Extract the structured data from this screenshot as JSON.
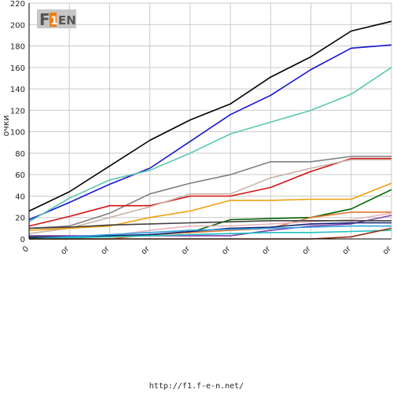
{
  "chart_data": {
    "type": "line",
    "ylabel": "очки",
    "ylim": [
      0,
      220
    ],
    "yticks": [
      0,
      20,
      40,
      60,
      80,
      100,
      120,
      140,
      160,
      180,
      200,
      220
    ],
    "x_tick_labels": [
      "0",
      "or",
      "or",
      "or",
      "or",
      "or",
      "or",
      "or",
      "or",
      "or"
    ],
    "grid": true,
    "series": [
      {
        "color": "#000000",
        "values": [
          26,
          44,
          68,
          92,
          111,
          126,
          151,
          170,
          194,
          203
        ]
      },
      {
        "color": "#1515d4",
        "values": [
          18,
          34,
          51,
          66,
          91,
          116,
          134,
          158,
          178,
          181
        ]
      },
      {
        "color": "#5ac8b0",
        "values": [
          16,
          38,
          55,
          64,
          80,
          98,
          109,
          120,
          135,
          160
        ]
      },
      {
        "color": "#7f7f7f",
        "values": [
          10,
          12,
          24,
          42,
          52,
          60,
          72,
          72,
          77,
          77
        ]
      },
      {
        "color": "#d41010",
        "values": [
          12,
          21,
          31,
          31,
          40,
          40,
          48,
          63,
          75,
          75
        ]
      },
      {
        "color": "#c8b4a8",
        "values": [
          5,
          10,
          20,
          30,
          42,
          42,
          57,
          66,
          74,
          74
        ]
      },
      {
        "color": "#f0a010",
        "values": [
          8,
          10,
          12,
          20,
          26,
          36,
          36,
          37,
          37,
          52
        ]
      },
      {
        "color": "#006400",
        "values": [
          2,
          2,
          2,
          4,
          6,
          18,
          19,
          20,
          28,
          46
        ]
      },
      {
        "color": "#e07830",
        "values": [
          0,
          0,
          0,
          4,
          6,
          8,
          10,
          20,
          25,
          25
        ]
      },
      {
        "color": "#e4b4c0",
        "values": [
          1,
          2,
          3,
          8,
          12,
          12,
          14,
          16,
          18,
          24
        ]
      },
      {
        "color": "#8040b0",
        "values": [
          3,
          3,
          3,
          3,
          3,
          3,
          8,
          12,
          14,
          22
        ]
      },
      {
        "color": "#404040",
        "values": [
          10,
          11,
          13,
          14,
          15,
          16,
          17,
          17,
          17,
          17
        ]
      },
      {
        "color": "#102070",
        "values": [
          1,
          2,
          3,
          4,
          7,
          10,
          11,
          14,
          15,
          15
        ]
      },
      {
        "color": "#30a0e0",
        "values": [
          0,
          2,
          4,
          6,
          8,
          9,
          10,
          11,
          12,
          12
        ]
      },
      {
        "color": "#20c0c0",
        "values": [
          0,
          1,
          2,
          3,
          4,
          5,
          6,
          6,
          7,
          8
        ]
      },
      {
        "color": "#903010",
        "values": [
          0,
          0,
          0,
          0,
          0,
          0,
          0,
          0,
          2,
          10
        ]
      }
    ]
  },
  "logo": {
    "text": "F1EN"
  },
  "footer": {
    "url": "http://f1.f-e-n.net/"
  }
}
